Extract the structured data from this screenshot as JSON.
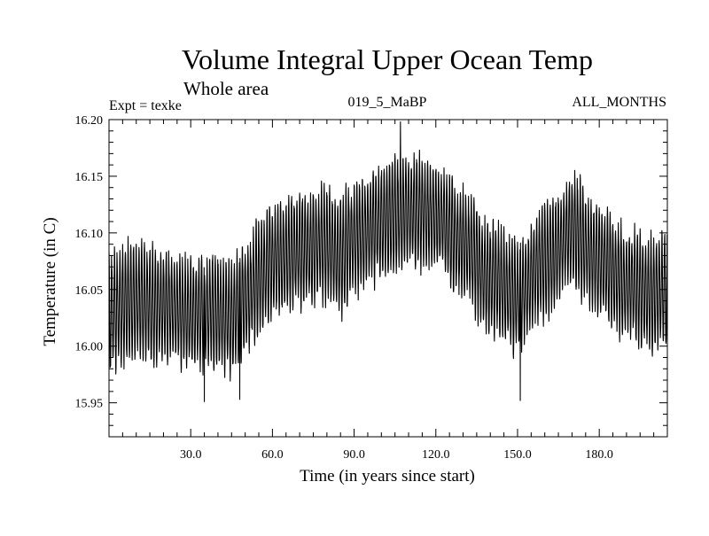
{
  "chart_data": {
    "type": "line",
    "title": "Volume Integral Upper Ocean Temp",
    "subtitle": "Whole area",
    "experiment": "Expt = texke",
    "run_id": "019_5_MaBP",
    "period": "ALL_MONTHS",
    "xlabel": "Time (in years since start)",
    "ylabel": "Temperature (in C)",
    "xlim": [
      0,
      205
    ],
    "ylim": [
      15.92,
      16.2
    ],
    "xticks": [
      30,
      60,
      90,
      120,
      150,
      180
    ],
    "xtick_labels": [
      "30.0",
      "60.0",
      "90.0",
      "120.0",
      "150.0",
      "180.0"
    ],
    "yticks": [
      15.95,
      16.0,
      16.05,
      16.1,
      16.15,
      16.2
    ],
    "ytick_labels": [
      "15.95",
      "16.00",
      "16.05",
      "16.10",
      "16.15",
      "16.20"
    ],
    "line_color": "#000000",
    "monthly_sampling_per_year": 12,
    "series": [
      {
        "name": "Volume integral upper ocean temperature",
        "annual_mean_knots": {
          "x": [
            0,
            10,
            20,
            30,
            40,
            45,
            50,
            55,
            60,
            70,
            80,
            85,
            90,
            100,
            110,
            120,
            130,
            140,
            150,
            160,
            170,
            180,
            190,
            200,
            205
          ],
          "y": [
            16.03,
            16.04,
            16.035,
            16.03,
            16.03,
            16.025,
            16.04,
            16.06,
            16.075,
            16.085,
            16.09,
            16.08,
            16.095,
            16.11,
            16.12,
            16.115,
            16.09,
            16.06,
            16.045,
            16.075,
            16.1,
            16.075,
            16.055,
            16.045,
            16.05
          ]
        },
        "seasonal_amplitude": 0.045,
        "notable_extremes": [
          {
            "x": 107,
            "y": 16.198
          },
          {
            "x": 151,
            "y": 15.952
          },
          {
            "x": 35,
            "y": 15.951
          },
          {
            "x": 48,
            "y": 15.953
          }
        ]
      }
    ]
  }
}
